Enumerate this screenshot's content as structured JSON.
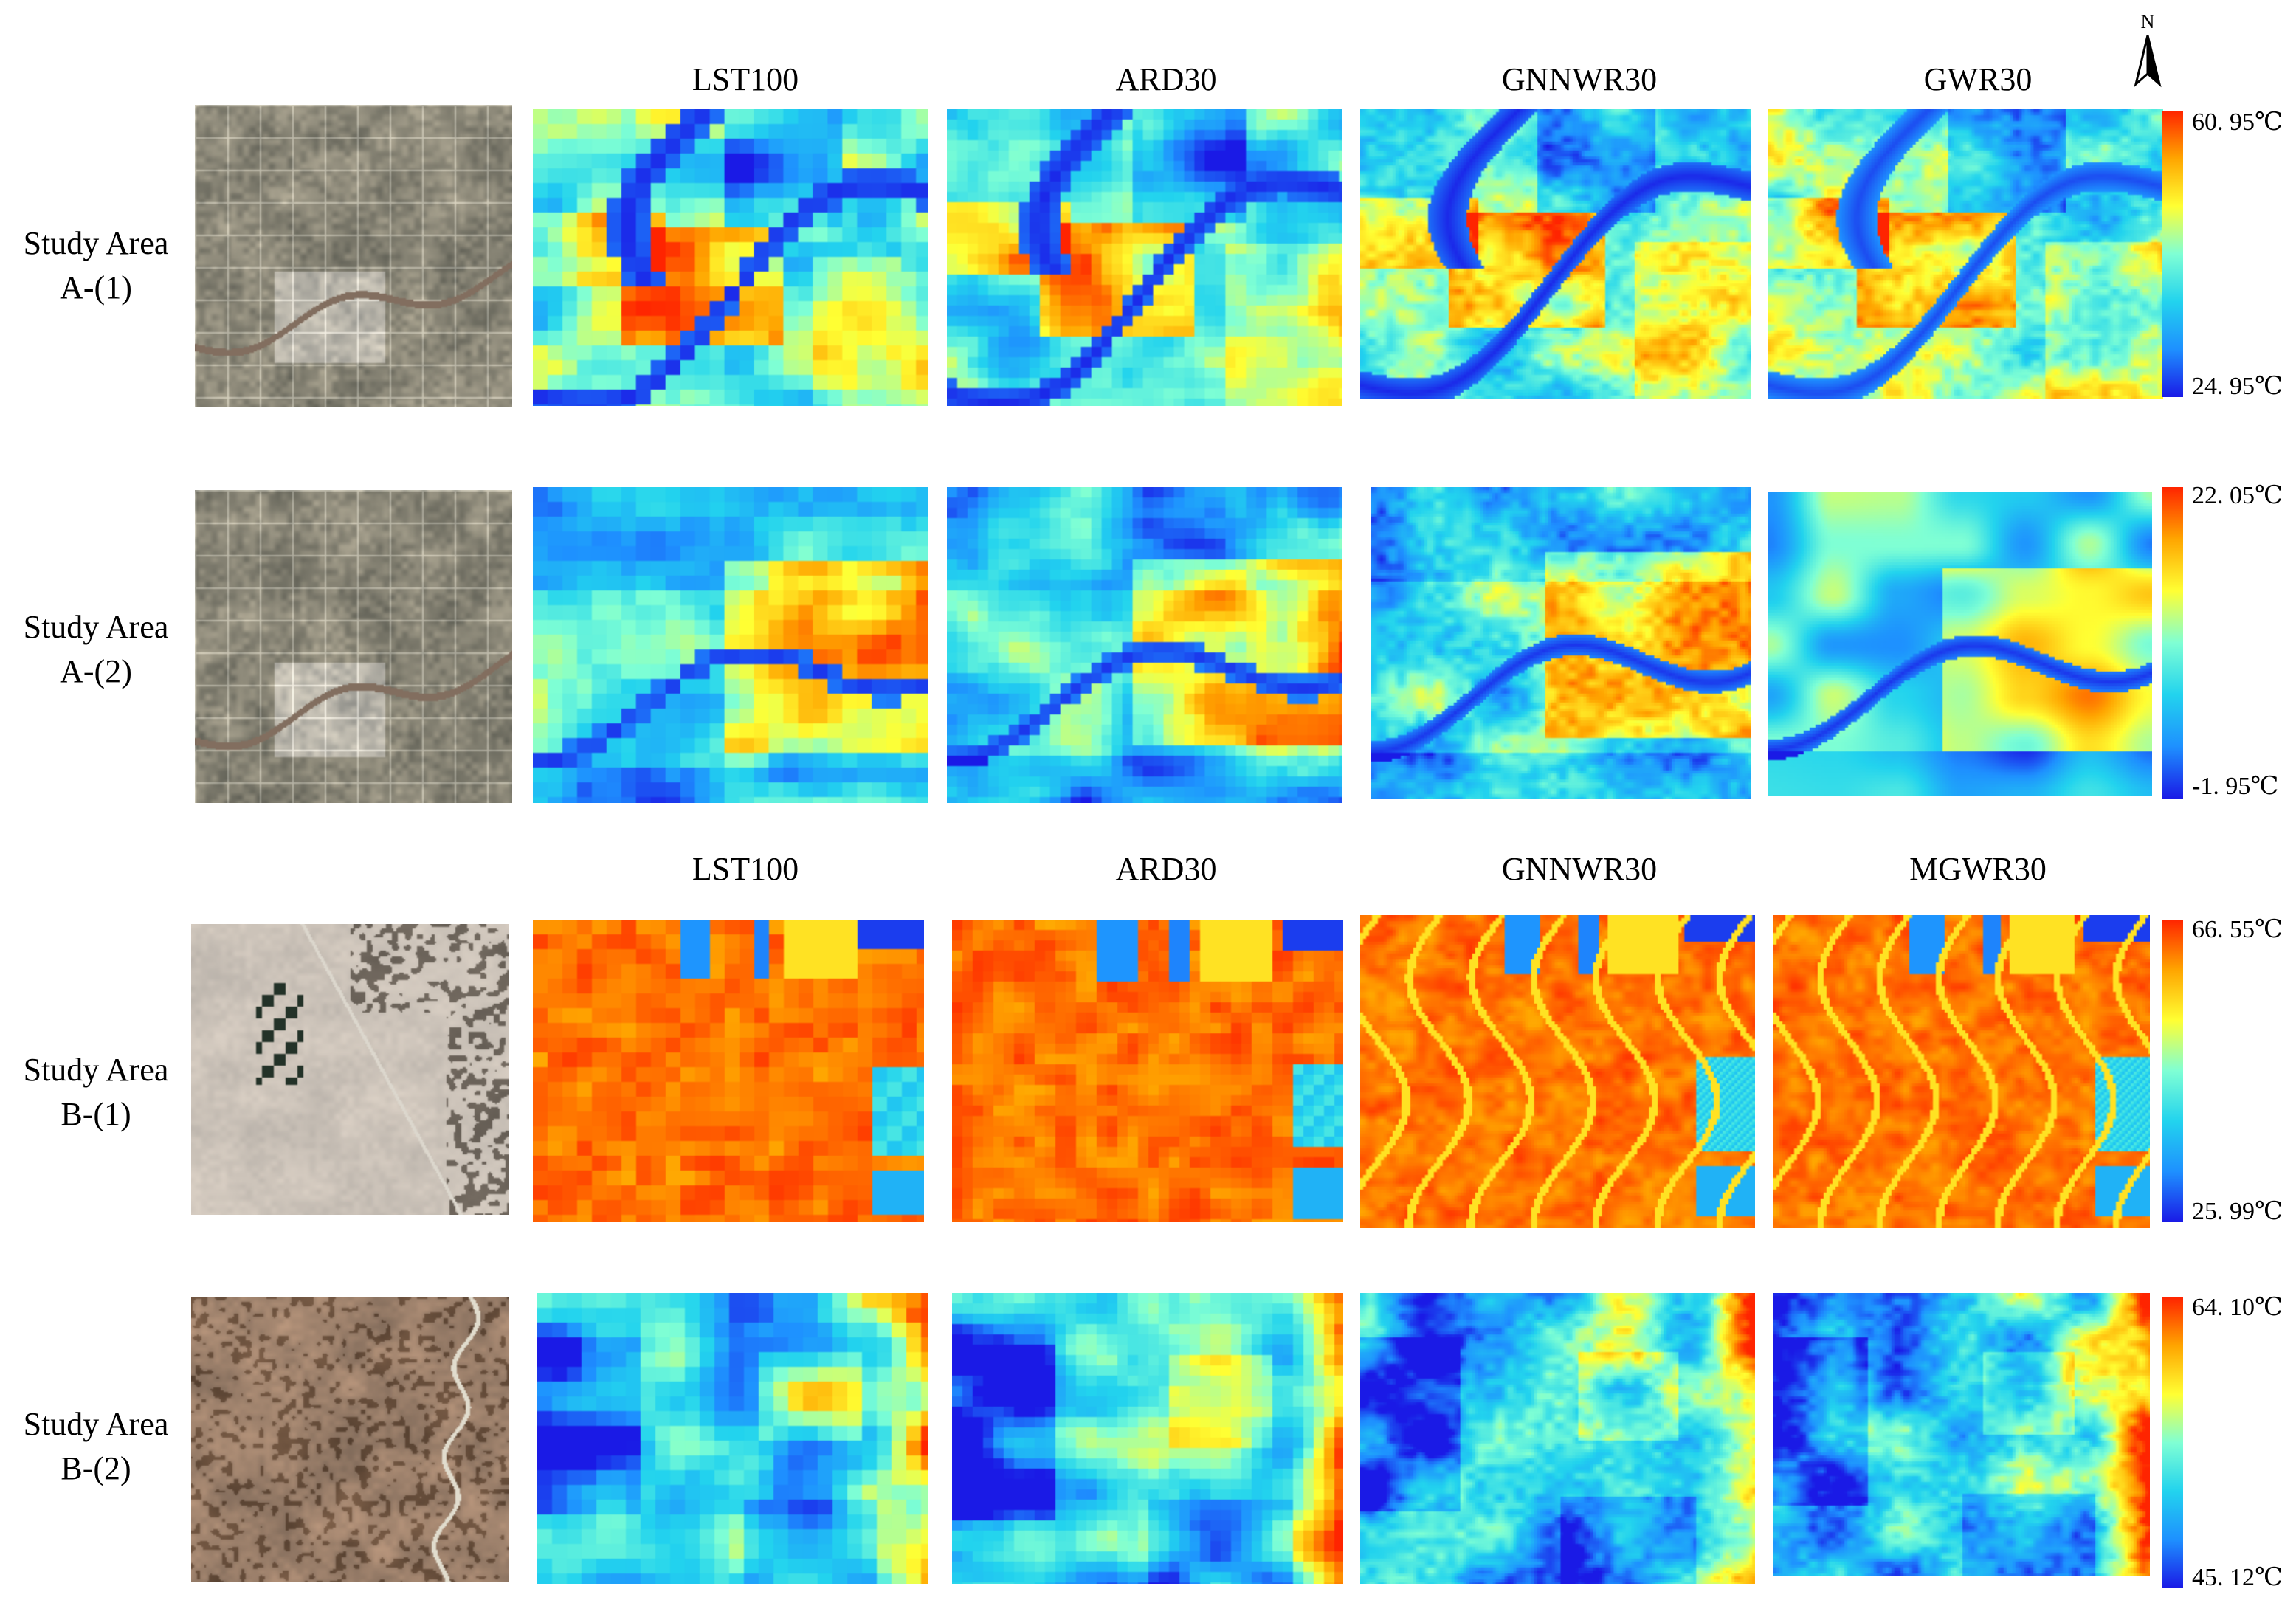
{
  "headers": {
    "top": [
      "LST100",
      "ARD30",
      "GNNWR30",
      "GWR30"
    ],
    "bottom": [
      "LST100",
      "ARD30",
      "GNNWR30",
      "MGWR30"
    ]
  },
  "rows": [
    {
      "label_line1": "Study Area",
      "label_line2": "A-(1)",
      "scale_max": "60. 95℃",
      "scale_min": "24. 95℃",
      "type": "urban-river"
    },
    {
      "label_line1": "Study Area",
      "label_line2": "A-(2)",
      "scale_max": "22. 05℃",
      "scale_min": "-1. 95℃",
      "type": "urban-river-2"
    },
    {
      "label_line1": "Study Area",
      "label_line2": "B-(1)",
      "scale_max": "66. 55℃",
      "scale_min": "25. 99℃",
      "type": "desert-fields"
    },
    {
      "label_line1": "Study Area",
      "label_line2": "B-(2)",
      "scale_max": "64. 10℃",
      "scale_min": "45. 12℃",
      "type": "desert-terrain"
    }
  ],
  "north_arrow": "N",
  "colormap": [
    "#1a1ae6",
    "#1e90ff",
    "#22d3ee",
    "#7fffd4",
    "#ffff33",
    "#ffa500",
    "#ff2400"
  ]
}
